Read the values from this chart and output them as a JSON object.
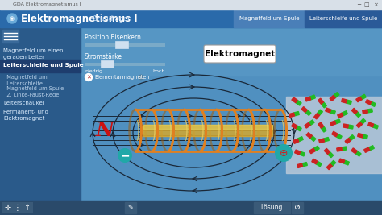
{
  "title_bar_text": "GDA Elektromagnetismus I",
  "main_title": "Elektromagnetismus I",
  "subtitle": "Grundlagen",
  "tab1": "Magnetfeld um Spule",
  "tab2": "Leiterschleife und Spule",
  "sidebar_items": [
    "Magnetfeld um einen\ngeraden Leiter",
    "Leiterschleife und Spule",
    "  Magnetfeld um\n  Leiterschleife",
    "  Magnetfeld um Spule",
    "  2. Linke-Faust-Regel",
    "Leiterschaukel",
    "Permanent- und\nElektromagnet"
  ],
  "slider1_label": "Position Eisenkern",
  "slider2_label": "Stromstärke",
  "slider_low": "niedrig",
  "slider_high": "hoch",
  "checkbox_label": "Elementarmagneten",
  "elektromagnet_label": "Elektromagnet",
  "loesung_button": "Lösung",
  "N_label": "N",
  "titlebar_bg": "#d8e0e8",
  "header_bg": "#2a6aaa",
  "header_title_color": "#ffffff",
  "header_subtitle_color": "#c0d8f0",
  "tab1_bg": "#4a7fb8",
  "tab2_bg": "#2a5a98",
  "sidebar_bg": "#2a5a8a",
  "sidebar_active_bg": "#1e3d6e",
  "sidebar_text_color": "#ddeeff",
  "sidebar_active_text": "#ffffff",
  "sidebar_sub_color": "#b8d0e8",
  "main_bg": "#5090c0",
  "main_bg_gradient": "#4080b0",
  "magnet_area_bg": "#c0ccd8",
  "field_line_color": "#1a2838",
  "coil_color_front": "#e08020",
  "coil_color_back": "#a06010",
  "coil_shine": "#f0d060",
  "iron_core_color": "#d4a830",
  "N_color": "#cc1111",
  "minus_circle_color": "#20a8a8",
  "plus_circle_color": "#20a8a8",
  "plus_text_color": "#cc2222",
  "bottom_bar_bg": "#2a4a6a",
  "loesung_bg": "#3a5a78",
  "bottom_icon_bg": "#3a5a78",
  "em_box_bg": "#ffffff",
  "em_text_color": "#000000",
  "fig_width": 4.74,
  "fig_height": 2.67,
  "dpi": 100
}
